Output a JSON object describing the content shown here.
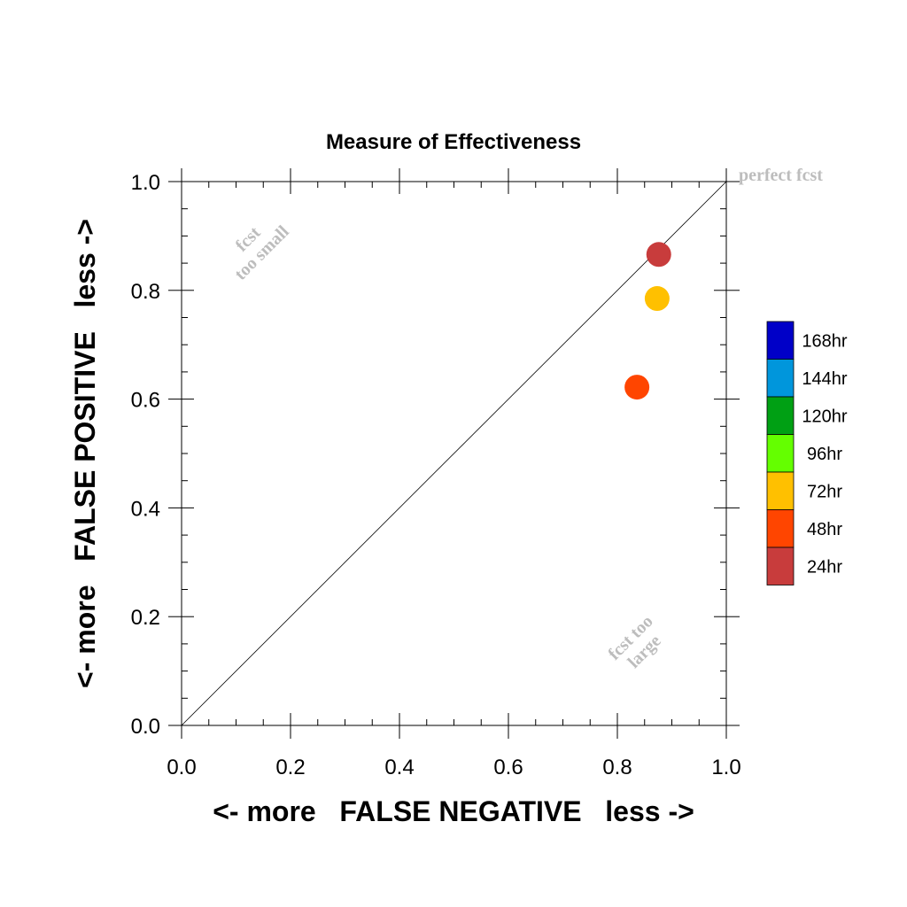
{
  "chart_data": {
    "type": "scatter",
    "title": "Measure of Effectiveness",
    "xlabel": "<- more   FALSE NEGATIVE   less ->",
    "ylabel": "<- more   FALSE POSITIVE   less ->",
    "xlim": [
      0,
      1
    ],
    "ylim": [
      0,
      1
    ],
    "x_ticks": [
      "0.0",
      "0.2",
      "0.4",
      "0.6",
      "0.8",
      "1.0"
    ],
    "y_ticks": [
      "0.0",
      "0.2",
      "0.4",
      "0.6",
      "0.8",
      "1.0"
    ],
    "grid": false,
    "diagonal_line": true,
    "annotations": {
      "perfect": "perfect fcst",
      "small_line1": "fcst",
      "small_line2": "too small",
      "large_line1": "fcst too",
      "large_line2": "large"
    },
    "points": [
      {
        "label": "24hr",
        "x": 0.876,
        "y": 0.866,
        "color": "#c83c3c"
      },
      {
        "label": "72hr",
        "x": 0.873,
        "y": 0.785,
        "color": "#ffc000"
      },
      {
        "label": "48hr",
        "x": 0.836,
        "y": 0.622,
        "color": "#ff4500"
      }
    ],
    "legend": {
      "position": "right",
      "entries": [
        {
          "label": "168hr",
          "color": "#0000c8"
        },
        {
          "label": "144hr",
          "color": "#0096dc"
        },
        {
          "label": "120hr",
          "color": "#00a014"
        },
        {
          "label": "96hr",
          "color": "#64ff00"
        },
        {
          "label": "72hr",
          "color": "#ffc000"
        },
        {
          "label": "48hr",
          "color": "#ff4500"
        },
        {
          "label": "24hr",
          "color": "#c83c3c"
        }
      ]
    },
    "colors": {
      "annotation": "#bdbdbd",
      "axis": "#000000"
    }
  }
}
